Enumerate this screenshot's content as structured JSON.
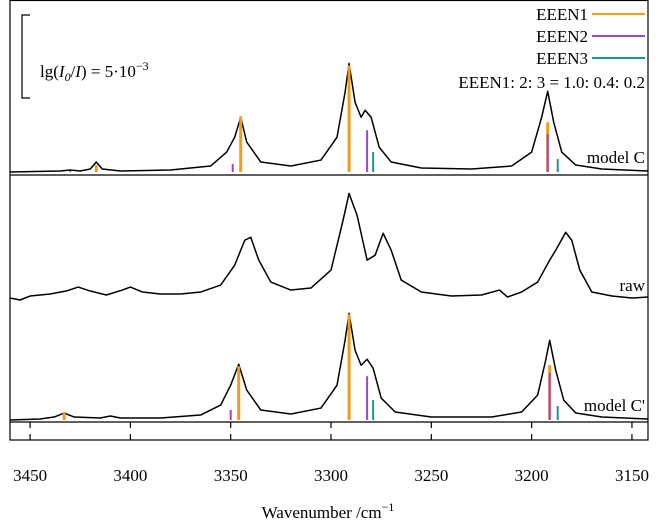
{
  "chart_data": {
    "type": "line",
    "xlim": [
      3460,
      3142
    ],
    "xticks": [
      3450,
      3400,
      3350,
      3300,
      3250,
      3200,
      3150
    ],
    "xlabel": "Wavenumber /cm",
    "xlabel_sup": "−1",
    "series": [
      {
        "name": "EEEN1",
        "color": "#f29b1d"
      },
      {
        "name": "EEEN2",
        "color": "#9b45d6"
      },
      {
        "name": "EEEN3",
        "color": "#1b978a"
      }
    ],
    "ratio_label": "EEEN1: 2: 3 = 1.0: 0.4: 0.2",
    "scale_bar": {
      "value": 0.005,
      "label_parts": [
        "lg(",
        "I",
        "0",
        "/",
        "I",
        ") = 5·10",
        "−3"
      ]
    },
    "panels": [
      {
        "label": "model C",
        "x": [
          3460,
          3435,
          3430,
          3425,
          3420,
          3417,
          3414,
          3405,
          3380,
          3360,
          3352,
          3348,
          3345,
          3342,
          3335,
          3320,
          3305,
          3297,
          3293,
          3291,
          3288,
          3285,
          3283,
          3280,
          3276,
          3270,
          3255,
          3230,
          3210,
          3200,
          3195,
          3192,
          3189,
          3185,
          3178,
          3165,
          3142
        ],
        "values": [
          0,
          6e-05,
          0.00012,
          6e-05,
          0.00018,
          0.0006,
          0.00018,
          6e-05,
          0.00012,
          0.00036,
          0.0012,
          0.0021,
          0.0033,
          0.0018,
          0.0006,
          0.00036,
          0.00072,
          0.0021,
          0.0048,
          0.00654,
          0.0042,
          0.0033,
          0.00372,
          0.0033,
          0.0015,
          0.0006,
          0.00024,
          0.00018,
          0.00036,
          0.0012,
          0.0033,
          0.00486,
          0.003,
          0.0012,
          0.00042,
          0.00018,
          6e-05
        ],
        "sticks": [
          {
            "x": [
              3417,
              3345,
              3291,
              3192
            ],
            "values": [
              0.00042,
              0.00336,
              0.00642,
              0.003
            ]
          },
          {
            "x": [
              3430,
              3349,
              3282,
              3192
            ],
            "values": [
              6e-05,
              0.00048,
              0.00252,
              0.00228
            ]
          },
          {
            "x": [
              3279,
              3187
            ],
            "values": [
              0.0012,
              0.00078
            ]
          }
        ]
      },
      {
        "label": "raw",
        "x": [
          3460,
          3455,
          3450,
          3440,
          3432,
          3426,
          3420,
          3412,
          3404,
          3400,
          3394,
          3385,
          3375,
          3365,
          3355,
          3348,
          3343,
          3340,
          3336,
          3330,
          3320,
          3310,
          3300,
          3294,
          3291,
          3287,
          3282,
          3278,
          3274,
          3270,
          3265,
          3255,
          3240,
          3225,
          3216,
          3212,
          3205,
          3197,
          3191,
          3188,
          3183,
          3180,
          3176,
          3170,
          3160,
          3150,
          3142
        ],
        "values": [
          0.00012,
          0,
          0.00024,
          0.00036,
          0.00054,
          0.00078,
          0.00054,
          0.0003,
          0.0006,
          0.00078,
          0.00048,
          0.00036,
          0.00036,
          0.00048,
          0.0009,
          0.0021,
          0.0036,
          0.00378,
          0.0024,
          0.00108,
          0.0006,
          0.00072,
          0.0018,
          0.0048,
          0.00642,
          0.0051,
          0.0024,
          0.0027,
          0.00402,
          0.003,
          0.0012,
          0.00048,
          0.00024,
          0.0003,
          0.0006,
          0.00018,
          0.00048,
          0.00108,
          0.0024,
          0.003,
          0.00408,
          0.0036,
          0.0018,
          0.00048,
          0.00024,
          0.00012,
          0.00018
        ],
        "sticks": []
      },
      {
        "label": "model C'",
        "x": [
          3460,
          3445,
          3438,
          3433,
          3428,
          3415,
          3410,
          3405,
          3385,
          3365,
          3355,
          3350,
          3346,
          3342,
          3335,
          3320,
          3305,
          3297,
          3293,
          3291,
          3288,
          3285,
          3282,
          3279,
          3275,
          3268,
          3250,
          3220,
          3205,
          3197,
          3193,
          3191,
          3188,
          3184,
          3178,
          3165,
          3142
        ],
        "values": [
          0,
          6e-05,
          0.00018,
          0.00042,
          0.00018,
          0.00012,
          0.00024,
          0.00012,
          0.00012,
          0.0003,
          0.0009,
          0.0021,
          0.00336,
          0.0018,
          0.0006,
          0.00036,
          0.00072,
          0.0021,
          0.0048,
          0.00642,
          0.0042,
          0.0033,
          0.00366,
          0.00312,
          0.00132,
          0.00048,
          0.00018,
          0.00018,
          0.00048,
          0.0015,
          0.0036,
          0.0048,
          0.003,
          0.0012,
          0.00042,
          0.00018,
          6e-05
        ],
        "sticks": [
          {
            "x": [
              3433,
              3346,
              3291,
              3191
            ],
            "values": [
              0.00048,
              0.00324,
              0.00636,
              0.0033
            ]
          },
          {
            "x": [
              3350,
              3282,
              3191
            ],
            "values": [
              0.0006,
              0.00264,
              0.00282
            ]
          },
          {
            "x": [
              3279,
              3187
            ],
            "values": [
              0.0012,
              0.00084
            ]
          }
        ]
      }
    ]
  }
}
